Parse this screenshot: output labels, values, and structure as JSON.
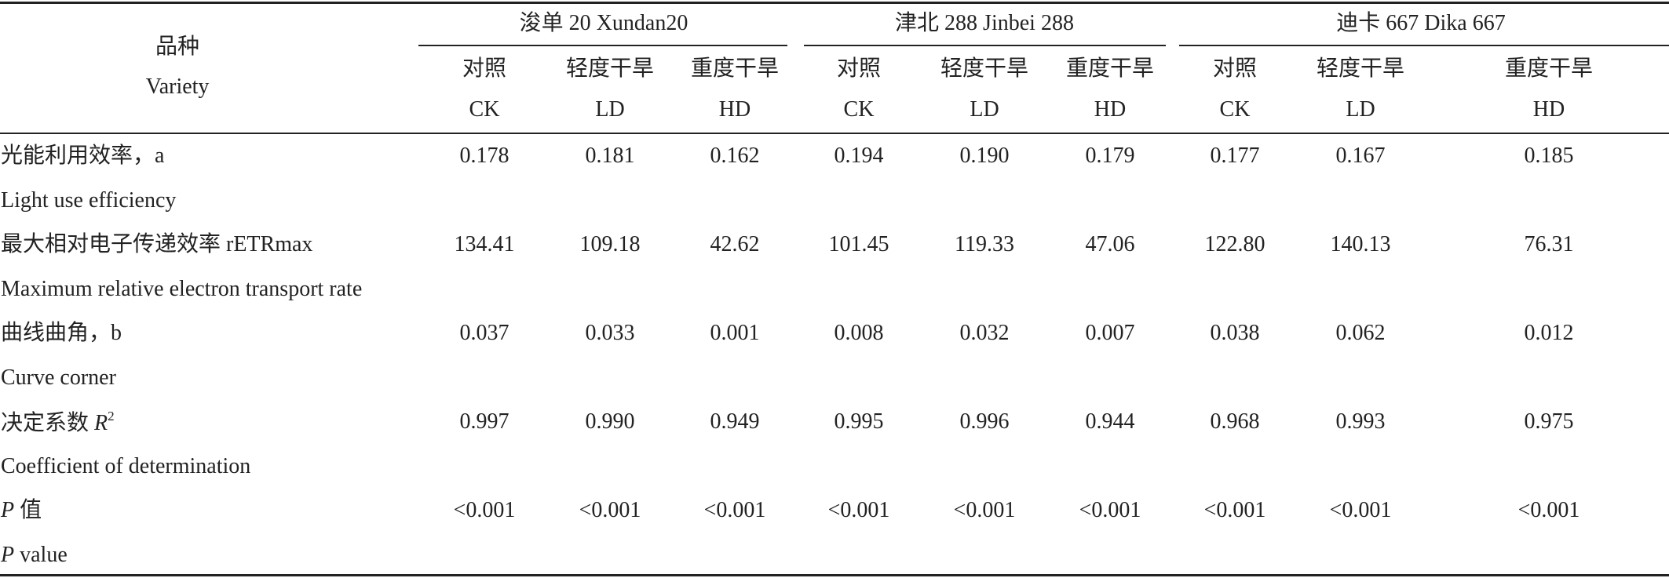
{
  "table": {
    "variety_header": [
      "品种",
      "Variety"
    ],
    "groups": [
      "浚单 20 Xundan20",
      "津北 288 Jinbei 288",
      "迪卡 667 Dika 667"
    ],
    "subheaders": [
      [
        "对照",
        "CK"
      ],
      [
        "轻度干旱",
        "LD"
      ],
      [
        "重度干旱",
        "HD"
      ],
      [
        "对照",
        "CK"
      ],
      [
        "轻度干旱",
        "LD"
      ],
      [
        "重度干旱",
        "HD"
      ],
      [
        "对照",
        "CK"
      ],
      [
        "轻度干旱",
        "LD"
      ],
      [
        "重度干旱",
        "HD"
      ]
    ],
    "rows": [
      {
        "zh": [
          "光能利用效率，a"
        ],
        "en": [
          "Light use efficiency"
        ],
        "values": [
          "0.178",
          "0.181",
          "0.162",
          "0.194",
          "0.190",
          "0.179",
          "0.177",
          "0.167",
          "0.185"
        ]
      },
      {
        "zh": [
          "最大相对电子传递效率 rETRmax"
        ],
        "en": [
          "Maximum relative electron transport rate"
        ],
        "values": [
          "134.41",
          "109.18",
          "42.62",
          "101.45",
          "119.33",
          "47.06",
          "122.80",
          "140.13",
          "76.31"
        ]
      },
      {
        "zh": [
          "曲线曲角，b"
        ],
        "en": [
          "Curve corner"
        ],
        "values": [
          "0.037",
          "0.033",
          "0.001",
          "0.008",
          "0.032",
          "0.007",
          "0.038",
          "0.062",
          "0.012"
        ]
      },
      {
        "zh": [
          "决定系数 ",
          "R",
          "2"
        ],
        "en": [
          "Coefficient of determination"
        ],
        "values": [
          "0.997",
          "0.990",
          "0.949",
          "0.995",
          "0.996",
          "0.944",
          "0.968",
          "0.993",
          "0.975"
        ]
      },
      {
        "zh": [
          "P",
          " 值"
        ],
        "en": [
          "P",
          " value"
        ],
        "values": [
          "<0.001",
          "<0.001",
          "<0.001",
          "<0.001",
          "<0.001",
          "<0.001",
          "<0.001",
          "<0.001",
          "<0.001"
        ]
      }
    ]
  }
}
